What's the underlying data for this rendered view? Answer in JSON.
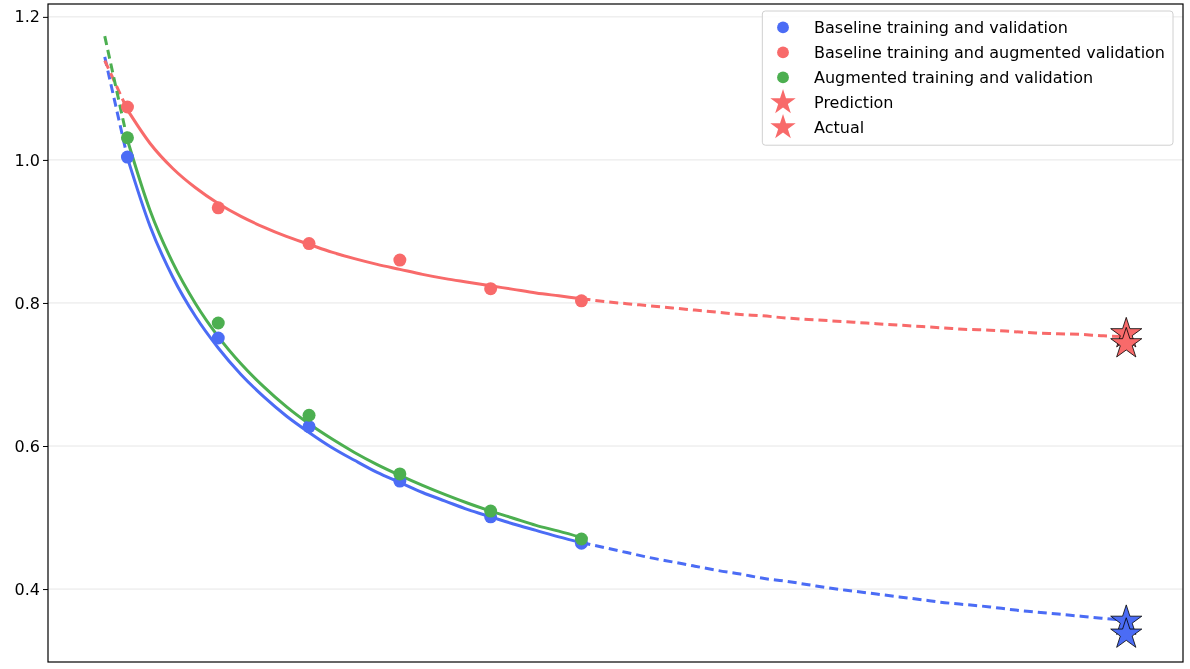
{
  "chart_data": {
    "type": "scatter",
    "categories": [
      null,
      null,
      null,
      null,
      null,
      null,
      null,
      null,
      null,
      null,
      null,
      null,
      null,
      null,
      null,
      null,
      null,
      null,
      null,
      null,
      null,
      null,
      null,
      null,
      null,
      null,
      null,
      null,
      null,
      null,
      null,
      null,
      null,
      null,
      null,
      null,
      null,
      null,
      null,
      null,
      null,
      null,
      null,
      null,
      null,
      null,
      null,
      null,
      null,
      null
    ],
    "ylim": [
      0.298,
      1.218
    ],
    "yticks": [
      0.4,
      0.6,
      0.8,
      {
        "value": 1.0,
        "label": "1.0"
      },
      1.2
    ],
    "tick_labels": "y",
    "grid": "y",
    "legend": "top right",
    "marker": "circle",
    "series": [
      {
        "type": "line",
        "marker": "none",
        "line_style": "dashed",
        "color": "#4b6cf5",
        "values": [
          null,
          null,
          1.144,
          1.003,
          null,
          null,
          null,
          null,
          null,
          null,
          null,
          null,
          null,
          null,
          null,
          null,
          null,
          null,
          null,
          null,
          null,
          null,
          null,
          null,
          null,
          null,
          null,
          null,
          null,
          null,
          null,
          null,
          null,
          null,
          null,
          null,
          null,
          null,
          null,
          null,
          null,
          null,
          null,
          null,
          null,
          null,
          null,
          null,
          null,
          null
        ]
      },
      {
        "type": "line",
        "marker": "none",
        "line_style": "solid",
        "color": "#4b6cf5",
        "values": [
          null,
          null,
          null,
          1.003,
          0.907,
          0.836,
          0.781,
          0.737,
          0.7,
          0.669,
          0.642,
          0.619,
          0.598,
          0.58,
          0.563,
          0.549,
          0.535,
          0.523,
          0.511,
          0.501,
          0.491,
          0.482,
          0.473,
          0.465,
          null,
          null,
          null,
          null,
          null,
          null,
          null,
          null,
          null,
          null,
          null,
          null,
          null,
          null,
          null,
          null,
          null,
          null,
          null,
          null,
          null,
          null,
          null,
          null,
          null,
          null
        ]
      },
      {
        "type": "line",
        "marker": "none",
        "line_style": "dashed",
        "color": "#4b6cf5",
        "values": [
          null,
          null,
          null,
          null,
          null,
          null,
          null,
          null,
          null,
          null,
          null,
          null,
          null,
          null,
          null,
          null,
          null,
          null,
          null,
          null,
          null,
          null,
          null,
          0.465,
          0.458,
          0.451,
          0.444,
          0.438,
          0.432,
          0.426,
          0.421,
          0.415,
          0.411,
          0.406,
          0.401,
          0.397,
          0.393,
          0.389,
          0.385,
          0.381,
          0.378,
          0.375,
          0.371,
          0.368,
          0.365,
          0.362,
          0.359,
          0.356,
          null,
          null
        ]
      },
      {
        "type": "line",
        "marker": "none",
        "line_style": "dashed",
        "color": "#f86a6a",
        "values": [
          null,
          null,
          1.139,
          1.07,
          null,
          null,
          null,
          null,
          null,
          null,
          null,
          null,
          null,
          null,
          null,
          null,
          null,
          null,
          null,
          null,
          null,
          null,
          null,
          null,
          null,
          null,
          null,
          null,
          null,
          null,
          null,
          null,
          null,
          null,
          null,
          null,
          null,
          null,
          null,
          null,
          null,
          null,
          null,
          null,
          null,
          null,
          null,
          null,
          null,
          null
        ]
      },
      {
        "type": "line",
        "marker": "none",
        "line_style": "solid",
        "color": "#f86a6a",
        "values": [
          null,
          null,
          null,
          1.07,
          1.023,
          0.988,
          0.961,
          0.939,
          0.921,
          0.906,
          0.893,
          0.882,
          0.871,
          0.862,
          0.854,
          0.847,
          0.84,
          0.834,
          0.829,
          0.824,
          0.819,
          0.814,
          0.81,
          0.806,
          null,
          null,
          null,
          null,
          null,
          null,
          null,
          null,
          null,
          null,
          null,
          null,
          null,
          null,
          null,
          null,
          null,
          null,
          null,
          null,
          null,
          null,
          null,
          null,
          null,
          null
        ]
      },
      {
        "type": "line",
        "marker": "none",
        "line_style": "dashed",
        "color": "#f86a6a",
        "values": [
          null,
          null,
          null,
          null,
          null,
          null,
          null,
          null,
          null,
          null,
          null,
          null,
          null,
          null,
          null,
          null,
          null,
          null,
          null,
          null,
          null,
          null,
          null,
          0.806,
          0.802,
          0.799,
          0.796,
          0.793,
          0.79,
          0.787,
          0.784,
          0.782,
          0.779,
          0.777,
          0.775,
          0.773,
          0.771,
          0.769,
          0.767,
          0.765,
          0.763,
          0.762,
          0.76,
          0.758,
          0.757,
          0.756,
          0.754,
          0.753,
          null,
          null
        ]
      },
      {
        "type": "line",
        "marker": "none",
        "line_style": "dashed",
        "color": "#4caf50",
        "values": [
          null,
          null,
          1.173,
          1.028,
          null,
          null,
          null,
          null,
          null,
          null,
          null,
          null,
          null,
          null,
          null,
          null,
          null,
          null,
          null,
          null,
          null,
          null,
          null,
          null,
          null,
          null,
          null,
          null,
          null,
          null,
          null,
          null,
          null,
          null,
          null,
          null,
          null,
          null,
          null,
          null,
          null,
          null,
          null,
          null,
          null,
          null,
          null,
          null,
          null,
          null
        ]
      },
      {
        "type": "line",
        "marker": "none",
        "line_style": "solid",
        "color": "#4caf50",
        "values": [
          null,
          null,
          null,
          1.028,
          0.929,
          0.856,
          0.799,
          0.753,
          0.715,
          0.683,
          0.655,
          0.631,
          0.61,
          0.591,
          0.574,
          0.559,
          0.545,
          0.532,
          0.52,
          0.509,
          0.499,
          0.489,
          0.481,
          0.472,
          null,
          null,
          null,
          null,
          null,
          null,
          null,
          null,
          null,
          null,
          null,
          null,
          null,
          null,
          null,
          null,
          null,
          null,
          null,
          null,
          null,
          null,
          null,
          null,
          null,
          null
        ]
      },
      {
        "name": "Baseline training and validation",
        "color": "#4b6cf5",
        "values": [
          null,
          null,
          null,
          1.004,
          null,
          null,
          null,
          0.751,
          null,
          null,
          null,
          0.627,
          null,
          null,
          null,
          0.551,
          null,
          null,
          null,
          0.501,
          null,
          null,
          null,
          0.464,
          null,
          null,
          null,
          null,
          null,
          null,
          null,
          null,
          null,
          null,
          null,
          null,
          null,
          null,
          null,
          null,
          null,
          null,
          null,
          null,
          null,
          null,
          null,
          null,
          null,
          null
        ]
      },
      {
        "name": "Baseline training and augmented validation",
        "color": "#f86a6a",
        "values": [
          null,
          null,
          null,
          1.074,
          null,
          null,
          null,
          0.933,
          null,
          null,
          null,
          0.883,
          null,
          null,
          null,
          0.86,
          null,
          null,
          null,
          0.82,
          null,
          null,
          null,
          0.803,
          null,
          null,
          null,
          null,
          null,
          null,
          null,
          null,
          null,
          null,
          null,
          null,
          null,
          null,
          null,
          null,
          null,
          null,
          null,
          null,
          null,
          null,
          null,
          null,
          null,
          null
        ]
      },
      {
        "name": "Augmented training and validation",
        "color": "#4caf50",
        "values": [
          null,
          null,
          null,
          1.031,
          null,
          null,
          null,
          0.772,
          null,
          null,
          null,
          0.643,
          null,
          null,
          null,
          0.561,
          null,
          null,
          null,
          0.509,
          null,
          null,
          null,
          0.47,
          null,
          null,
          null,
          null,
          null,
          null,
          null,
          null,
          null,
          null,
          null,
          null,
          null,
          null,
          null,
          null,
          null,
          null,
          null,
          null,
          null,
          null,
          null,
          null,
          null,
          null
        ]
      },
      {
        "name": "Prediction",
        "marker": "star",
        "color": "#f86a6a",
        "values": [
          null,
          null,
          null,
          null,
          null,
          null,
          null,
          null,
          null,
          null,
          null,
          null,
          null,
          null,
          null,
          null,
          null,
          null,
          null,
          null,
          null,
          null,
          null,
          null,
          null,
          null,
          null,
          null,
          null,
          null,
          null,
          null,
          null,
          null,
          null,
          null,
          null,
          null,
          null,
          null,
          null,
          null,
          null,
          null,
          null,
          null,
          null,
          0.757,
          null,
          null
        ]
      },
      {
        "marker": "star",
        "color": "#4b6cf5",
        "values": [
          null,
          null,
          null,
          null,
          null,
          null,
          null,
          null,
          null,
          null,
          null,
          null,
          null,
          null,
          null,
          null,
          null,
          null,
          null,
          null,
          null,
          null,
          null,
          null,
          null,
          null,
          null,
          null,
          null,
          null,
          null,
          null,
          null,
          null,
          null,
          null,
          null,
          null,
          null,
          null,
          null,
          null,
          null,
          null,
          null,
          null,
          null,
          0.355,
          null,
          null
        ]
      },
      {
        "name": "Actual",
        "marker": "star",
        "color": "#f86a6a",
        "values": [
          null,
          null,
          null,
          null,
          null,
          null,
          null,
          null,
          null,
          null,
          null,
          null,
          null,
          null,
          null,
          null,
          null,
          null,
          null,
          null,
          null,
          null,
          null,
          null,
          null,
          null,
          null,
          null,
          null,
          null,
          null,
          null,
          null,
          null,
          null,
          null,
          null,
          null,
          null,
          null,
          null,
          null,
          null,
          null,
          null,
          null,
          null,
          0.743,
          null,
          null
        ]
      },
      {
        "marker": "star",
        "color": "#4b6cf5",
        "values": [
          null,
          null,
          null,
          null,
          null,
          null,
          null,
          null,
          null,
          null,
          null,
          null,
          null,
          null,
          null,
          null,
          null,
          null,
          null,
          null,
          null,
          null,
          null,
          null,
          null,
          null,
          null,
          null,
          null,
          null,
          null,
          null,
          null,
          null,
          null,
          null,
          null,
          null,
          null,
          null,
          null,
          null,
          null,
          null,
          null,
          null,
          null,
          0.337,
          null,
          null
        ]
      }
    ]
  }
}
